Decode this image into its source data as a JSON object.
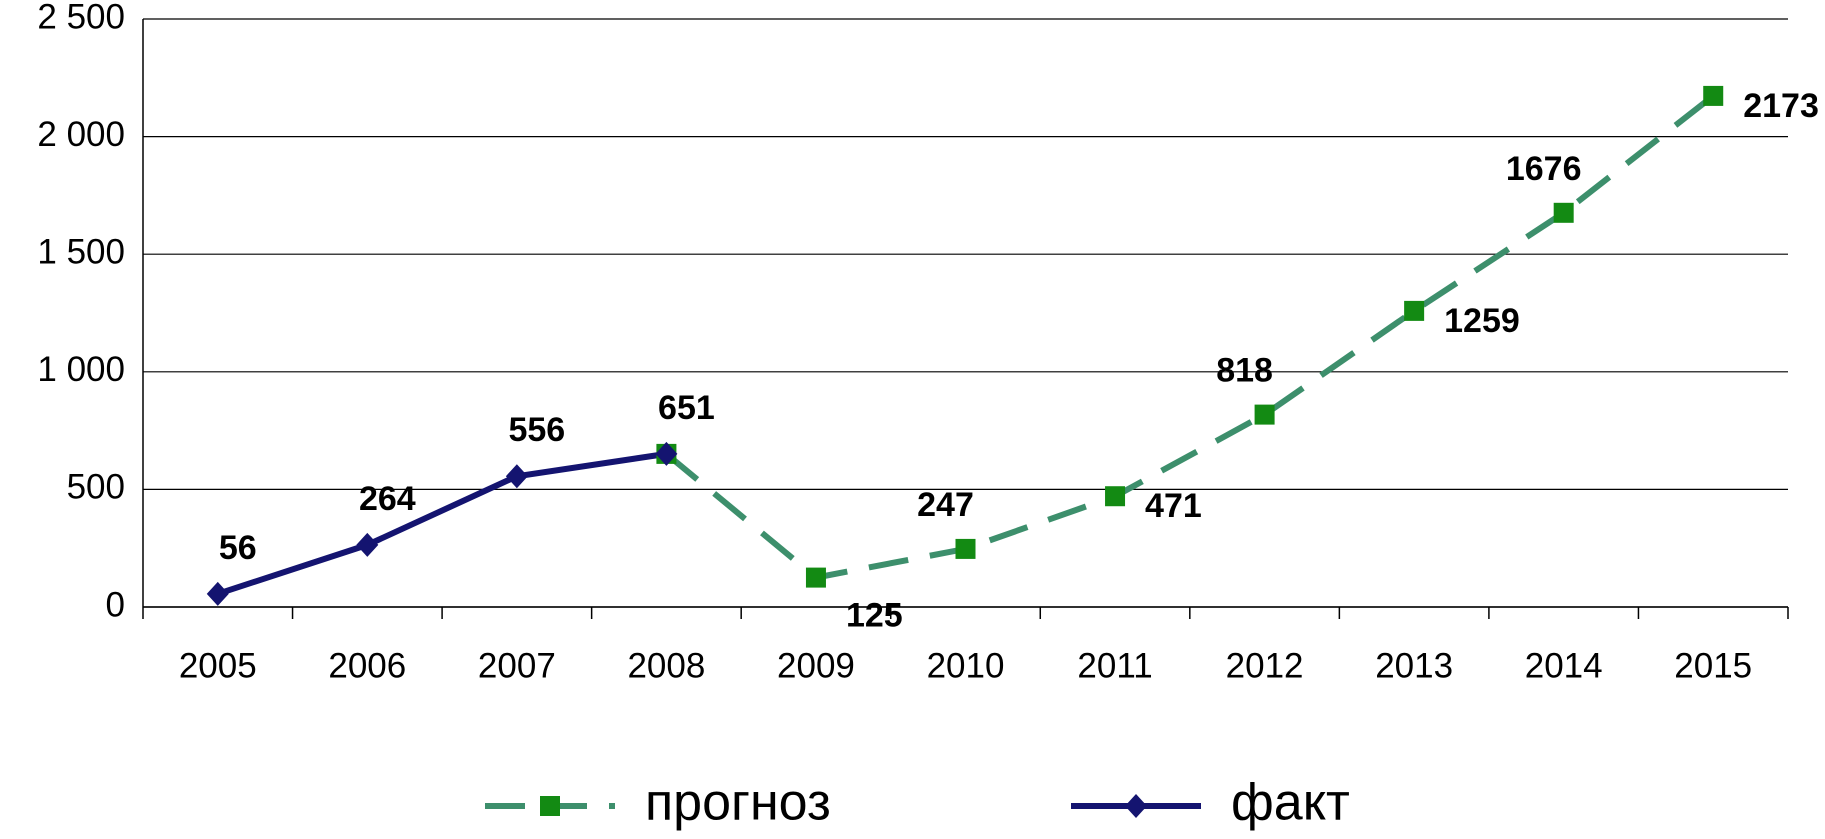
{
  "chart_data": {
    "type": "line",
    "categories": [
      "2005",
      "2006",
      "2007",
      "2008",
      "2009",
      "2010",
      "2011",
      "2012",
      "2013",
      "2014",
      "2015"
    ],
    "series": [
      {
        "name": "прогноз",
        "color": "#3d8f6c",
        "marker_color": "#138a13",
        "marker": "square",
        "dashed": true,
        "values": [
          null,
          null,
          null,
          651,
          125,
          247,
          471,
          818,
          1259,
          1676,
          2173
        ]
      },
      {
        "name": "факт",
        "color": "#141470",
        "marker_color": "#141470",
        "marker": "diamond",
        "dashed": false,
        "values": [
          56,
          264,
          556,
          651,
          null,
          null,
          null,
          null,
          null,
          null,
          null
        ]
      }
    ],
    "ylim": [
      0,
      2500
    ],
    "yticks": [
      0,
      500,
      {
        "value": 1000,
        "label": "1 000"
      },
      {
        "value": 1500,
        "label": "1 500"
      },
      {
        "value": 2000,
        "label": "2 000"
      },
      {
        "value": 2500,
        "label": "2 500"
      }
    ],
    "grid": true,
    "legend": "bottom"
  }
}
